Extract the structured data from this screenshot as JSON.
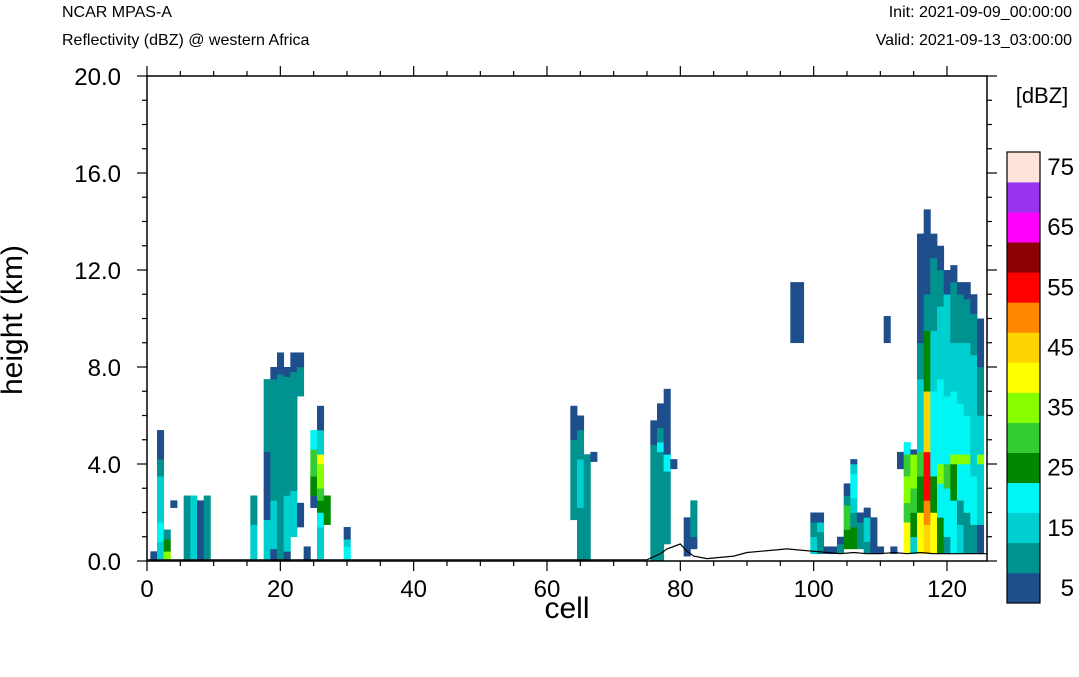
{
  "header": {
    "model": "NCAR MPAS-A",
    "field": "Reflectivity (dBZ) @ western Africa",
    "init": "Init: 2021-09-09_00:00:00",
    "valid": "Valid: 2021-09-13_03:00:00"
  },
  "chart_data": {
    "type": "heatmap",
    "title": "Reflectivity (dBZ) @ western Africa",
    "xlabel": "cell",
    "ylabel": "height (km)",
    "xlim": [
      0,
      126
    ],
    "ylim": [
      0,
      20
    ],
    "x_ticks": [
      "0",
      "20",
      "40",
      "60",
      "80",
      "100",
      "120"
    ],
    "y_ticks": [
      "0.0",
      "4.0",
      "8.0",
      "12.0",
      "16.0",
      "20.0"
    ],
    "colorbar": {
      "units": "[dBZ]",
      "levels": [
        "5",
        "15",
        "25",
        "35",
        "45",
        "55",
        "65",
        "75"
      ],
      "colors": [
        "#1f4e8c",
        "#00928f",
        "#00cfd0",
        "#00f5f5",
        "#008800",
        "#33cc33",
        "#88ff00",
        "#ffff00",
        "#ffd400",
        "#ff8800",
        "#ff0000",
        "#8b0000",
        "#ff00ff",
        "#9933ee",
        "#ffe4dc"
      ]
    },
    "columns": [
      {
        "x": 1,
        "segs": [
          [
            0,
            0.4,
            0
          ]
        ]
      },
      {
        "x": 2,
        "segs": [
          [
            0,
            0.8,
            2
          ],
          [
            0.8,
            1.6,
            3
          ],
          [
            1.6,
            3.5,
            2
          ],
          [
            3.5,
            4.2,
            1
          ],
          [
            4.2,
            5.4,
            0
          ]
        ]
      },
      {
        "x": 3,
        "segs": [
          [
            0,
            0.4,
            6
          ],
          [
            0.4,
            0.9,
            4
          ],
          [
            0.9,
            1.3,
            1
          ]
        ]
      },
      {
        "x": 4,
        "segs": [
          [
            2.2,
            2.5,
            0
          ]
        ]
      },
      {
        "x": 6,
        "segs": [
          [
            0,
            2.7,
            1
          ]
        ]
      },
      {
        "x": 7,
        "segs": [
          [
            0,
            2.7,
            2
          ]
        ]
      },
      {
        "x": 8,
        "segs": [
          [
            0,
            2.5,
            0
          ]
        ]
      },
      {
        "x": 9,
        "segs": [
          [
            0,
            2.7,
            1
          ]
        ]
      },
      {
        "x": 16,
        "segs": [
          [
            0,
            1.5,
            2
          ],
          [
            1.5,
            2.7,
            1
          ]
        ]
      },
      {
        "x": 18,
        "segs": [
          [
            0,
            1.7,
            2
          ],
          [
            1.7,
            4.5,
            0
          ],
          [
            4.5,
            7.5,
            1
          ]
        ]
      },
      {
        "x": 19,
        "segs": [
          [
            0,
            0.5,
            0
          ],
          [
            0.5,
            2.5,
            2
          ],
          [
            2.5,
            5.0,
            1
          ],
          [
            5.0,
            7.5,
            1
          ],
          [
            7.5,
            8.0,
            0
          ]
        ]
      },
      {
        "x": 20,
        "segs": [
          [
            0,
            2.7,
            1
          ],
          [
            2.7,
            5.5,
            1
          ],
          [
            5.5,
            7.7,
            1
          ],
          [
            7.7,
            8.6,
            0
          ]
        ]
      },
      {
        "x": 21,
        "segs": [
          [
            0,
            0.4,
            0
          ],
          [
            0.4,
            2.7,
            2
          ],
          [
            2.7,
            5.0,
            1
          ],
          [
            5.0,
            7.6,
            1
          ],
          [
            7.6,
            8.0,
            0
          ]
        ]
      },
      {
        "x": 22,
        "segs": [
          [
            1.0,
            2.9,
            2
          ],
          [
            2.9,
            5.3,
            1
          ],
          [
            5.3,
            7.8,
            1
          ],
          [
            7.8,
            8.6,
            0
          ]
        ]
      },
      {
        "x": 23,
        "segs": [
          [
            1.4,
            2.4,
            0
          ],
          [
            6.8,
            8.0,
            1
          ],
          [
            8.0,
            8.6,
            0
          ]
        ]
      },
      {
        "x": 24,
        "segs": [
          [
            0,
            0.6,
            0
          ]
        ]
      },
      {
        "x": 25,
        "segs": [
          [
            2.2,
            2.7,
            0
          ],
          [
            2.7,
            3.5,
            4
          ],
          [
            3.5,
            4.6,
            5
          ],
          [
            4.6,
            5.4,
            3
          ]
        ]
      },
      {
        "x": 26,
        "segs": [
          [
            0,
            1.4,
            2
          ],
          [
            1.4,
            2.0,
            3
          ],
          [
            2.0,
            2.5,
            4
          ],
          [
            2.5,
            3.0,
            5
          ],
          [
            3.0,
            4.0,
            6
          ],
          [
            4.0,
            4.4,
            7
          ],
          [
            4.4,
            5.4,
            2
          ],
          [
            5.4,
            6.4,
            0
          ]
        ]
      },
      {
        "x": 27,
        "segs": [
          [
            1.5,
            2.7,
            4
          ]
        ]
      },
      {
        "x": 30,
        "segs": [
          [
            0,
            0.6,
            3
          ],
          [
            0.6,
            0.9,
            2
          ],
          [
            0.9,
            1.4,
            0
          ]
        ]
      },
      {
        "x": 64,
        "segs": [
          [
            1.7,
            5.0,
            1
          ],
          [
            5.0,
            6.4,
            0
          ]
        ]
      },
      {
        "x": 65,
        "segs": [
          [
            0,
            2.2,
            1
          ],
          [
            2.2,
            4.2,
            2
          ],
          [
            4.2,
            5.4,
            1
          ],
          [
            5.4,
            6.0,
            0
          ]
        ]
      },
      {
        "x": 66,
        "segs": [
          [
            0,
            4.4,
            1
          ]
        ]
      },
      {
        "x": 67,
        "segs": [
          [
            4.1,
            4.5,
            0
          ]
        ]
      },
      {
        "x": 76,
        "segs": [
          [
            0,
            4.8,
            1
          ],
          [
            4.8,
            5.8,
            0
          ]
        ]
      },
      {
        "x": 77,
        "segs": [
          [
            0,
            3.0,
            1
          ],
          [
            3.0,
            4.5,
            1
          ],
          [
            4.5,
            4.9,
            3
          ],
          [
            4.9,
            5.5,
            1
          ],
          [
            5.5,
            6.5,
            0
          ]
        ]
      },
      {
        "x": 78,
        "segs": [
          [
            0.7,
            3.7,
            1
          ],
          [
            3.7,
            4.4,
            3
          ],
          [
            4.4,
            7.1,
            0
          ]
        ]
      },
      {
        "x": 79,
        "segs": [
          [
            3.8,
            4.2,
            0
          ]
        ]
      },
      {
        "x": 81,
        "segs": [
          [
            0.2,
            1.8,
            0
          ]
        ]
      },
      {
        "x": 82,
        "segs": [
          [
            0.5,
            1.0,
            0
          ],
          [
            1.0,
            2.5,
            1
          ]
        ]
      },
      {
        "x": 97,
        "segs": [
          [
            9.0,
            11.5,
            0
          ]
        ]
      },
      {
        "x": 98,
        "segs": [
          [
            9.0,
            11.5,
            0
          ]
        ]
      },
      {
        "x": 100,
        "segs": [
          [
            0.3,
            1.0,
            2
          ],
          [
            1.0,
            1.6,
            1
          ],
          [
            1.6,
            2.0,
            0
          ]
        ]
      },
      {
        "x": 101,
        "segs": [
          [
            0.3,
            1.2,
            1
          ],
          [
            1.2,
            1.6,
            2
          ],
          [
            1.6,
            2.0,
            0
          ]
        ]
      },
      {
        "x": 102,
        "segs": [
          [
            0.3,
            0.6,
            0
          ]
        ]
      },
      {
        "x": 103,
        "segs": [
          [
            0.3,
            0.6,
            0
          ]
        ]
      },
      {
        "x": 104,
        "segs": [
          [
            0.3,
            0.7,
            1
          ],
          [
            0.7,
            1.0,
            0
          ]
        ]
      },
      {
        "x": 105,
        "segs": [
          [
            0.5,
            1.3,
            4
          ],
          [
            1.3,
            2.3,
            5
          ],
          [
            2.3,
            2.7,
            1
          ],
          [
            2.7,
            3.2,
            0
          ]
        ]
      },
      {
        "x": 106,
        "segs": [
          [
            0.5,
            1.4,
            4
          ],
          [
            1.4,
            2.0,
            1
          ],
          [
            2.0,
            2.6,
            2
          ],
          [
            2.6,
            3.6,
            3
          ],
          [
            3.6,
            4.0,
            2
          ],
          [
            4.0,
            4.2,
            0
          ]
        ]
      },
      {
        "x": 107,
        "segs": [
          [
            0.5,
            1.6,
            1
          ],
          [
            1.6,
            2.0,
            0
          ]
        ]
      },
      {
        "x": 108,
        "segs": [
          [
            0.3,
            0.8,
            1
          ],
          [
            0.8,
            1.8,
            2
          ],
          [
            1.8,
            2.2,
            0
          ]
        ]
      },
      {
        "x": 109,
        "segs": [
          [
            0.3,
            1.8,
            0
          ]
        ]
      },
      {
        "x": 110,
        "segs": [
          [
            0.3,
            0.6,
            0
          ]
        ]
      },
      {
        "x": 111,
        "segs": [
          [
            9.0,
            10.1,
            0
          ]
        ]
      },
      {
        "x": 112,
        "segs": [
          [
            0.3,
            0.6,
            0
          ]
        ]
      },
      {
        "x": 113,
        "segs": [
          [
            3.8,
            4.5,
            0
          ]
        ]
      },
      {
        "x": 114,
        "segs": [
          [
            0.3,
            1.6,
            7
          ],
          [
            1.6,
            2.4,
            5
          ],
          [
            2.4,
            3.5,
            6
          ],
          [
            3.5,
            4.4,
            5
          ],
          [
            4.4,
            4.9,
            3
          ]
        ]
      },
      {
        "x": 115,
        "segs": [
          [
            0.3,
            1.0,
            2
          ],
          [
            1.0,
            2.0,
            4
          ],
          [
            2.0,
            3.0,
            5
          ],
          [
            3.0,
            4.4,
            6
          ],
          [
            4.4,
            4.6,
            0
          ]
        ]
      },
      {
        "x": 116,
        "segs": [
          [
            0.3,
            2.0,
            7
          ],
          [
            2.0,
            3.5,
            4
          ],
          [
            3.5,
            4.5,
            5
          ],
          [
            4.5,
            7.5,
            2
          ],
          [
            7.5,
            9.0,
            1
          ],
          [
            9.0,
            13.5,
            0
          ]
        ]
      },
      {
        "x": 117,
        "segs": [
          [
            0.3,
            1.5,
            8
          ],
          [
            1.5,
            2.5,
            9
          ],
          [
            2.5,
            3.5,
            10
          ],
          [
            3.5,
            4.5,
            10
          ],
          [
            4.5,
            7.0,
            8
          ],
          [
            7.0,
            9.5,
            4
          ],
          [
            9.5,
            11.0,
            1
          ],
          [
            11.0,
            14.5,
            0
          ]
        ]
      },
      {
        "x": 118,
        "segs": [
          [
            0.3,
            2.0,
            7
          ],
          [
            2.0,
            3.5,
            4
          ],
          [
            3.5,
            5.0,
            3
          ],
          [
            5.0,
            7.0,
            3
          ],
          [
            7.0,
            9.5,
            2
          ],
          [
            9.5,
            12.5,
            1
          ],
          [
            12.5,
            13.5,
            0
          ]
        ]
      },
      {
        "x": 119,
        "segs": [
          [
            0.3,
            1.8,
            4
          ],
          [
            1.8,
            3.2,
            3
          ],
          [
            3.2,
            4.0,
            6
          ],
          [
            4.0,
            5.5,
            3
          ],
          [
            5.5,
            7.5,
            3
          ],
          [
            7.5,
            10.5,
            2
          ],
          [
            10.5,
            12.0,
            1
          ],
          [
            12.0,
            13.0,
            0
          ]
        ]
      },
      {
        "x": 120,
        "segs": [
          [
            0.3,
            1.0,
            1
          ],
          [
            1.0,
            3.0,
            3
          ],
          [
            3.0,
            4.0,
            5
          ],
          [
            4.0,
            6.8,
            3
          ],
          [
            6.8,
            9.0,
            2
          ],
          [
            9.0,
            11.0,
            2
          ],
          [
            11.0,
            12.0,
            0
          ]
        ]
      },
      {
        "x": 121,
        "segs": [
          [
            0.3,
            2.5,
            3
          ],
          [
            2.5,
            4.0,
            4
          ],
          [
            4.0,
            4.4,
            6
          ],
          [
            4.4,
            7.0,
            3
          ],
          [
            7.0,
            9.0,
            2
          ],
          [
            9.0,
            11.5,
            1
          ],
          [
            11.5,
            12.2,
            0
          ]
        ]
      },
      {
        "x": 122,
        "segs": [
          [
            0.3,
            1.5,
            2
          ],
          [
            1.5,
            2.5,
            1
          ],
          [
            2.5,
            4.0,
            3
          ],
          [
            4.0,
            4.4,
            6
          ],
          [
            4.4,
            6.5,
            3
          ],
          [
            6.5,
            9.0,
            2
          ],
          [
            9.0,
            11.0,
            1
          ],
          [
            11.0,
            11.5,
            0
          ]
        ]
      },
      {
        "x": 123,
        "segs": [
          [
            0.3,
            2.0,
            1
          ],
          [
            2.0,
            4.0,
            3
          ],
          [
            4.0,
            4.4,
            6
          ],
          [
            4.4,
            6.0,
            3
          ],
          [
            6.0,
            9.0,
            2
          ],
          [
            9.0,
            10.8,
            1
          ],
          [
            10.8,
            11.5,
            0
          ]
        ]
      },
      {
        "x": 124,
        "segs": [
          [
            0.3,
            1.5,
            1
          ],
          [
            1.5,
            3.5,
            3
          ],
          [
            3.5,
            4.4,
            2
          ],
          [
            4.4,
            6.5,
            2
          ],
          [
            6.5,
            8.5,
            2
          ],
          [
            8.5,
            10.2,
            1
          ],
          [
            10.2,
            11.0,
            0
          ]
        ]
      },
      {
        "x": 125,
        "segs": [
          [
            0.3,
            1.5,
            0
          ],
          [
            1.5,
            4.0,
            2
          ],
          [
            4.0,
            4.4,
            6
          ],
          [
            4.4,
            6.0,
            2
          ],
          [
            6.0,
            8.0,
            1
          ],
          [
            8.0,
            10.0,
            0
          ]
        ]
      }
    ],
    "terrain": [
      [
        0,
        0.05
      ],
      [
        75,
        0.05
      ],
      [
        77,
        0.3
      ],
      [
        78,
        0.5
      ],
      [
        79,
        0.6
      ],
      [
        80,
        0.7
      ],
      [
        81,
        0.4
      ],
      [
        82,
        0.2
      ],
      [
        84,
        0.1
      ],
      [
        86,
        0.15
      ],
      [
        88,
        0.2
      ],
      [
        90,
        0.35
      ],
      [
        92,
        0.4
      ],
      [
        94,
        0.45
      ],
      [
        96,
        0.5
      ],
      [
        98,
        0.45
      ],
      [
        100,
        0.4
      ],
      [
        102,
        0.35
      ],
      [
        104,
        0.3
      ],
      [
        106,
        0.35
      ],
      [
        108,
        0.3
      ],
      [
        110,
        0.3
      ],
      [
        112,
        0.35
      ],
      [
        114,
        0.3
      ],
      [
        116,
        0.35
      ],
      [
        118,
        0.3
      ],
      [
        120,
        0.3
      ],
      [
        122,
        0.3
      ],
      [
        124,
        0.3
      ],
      [
        126,
        0.3
      ]
    ]
  }
}
